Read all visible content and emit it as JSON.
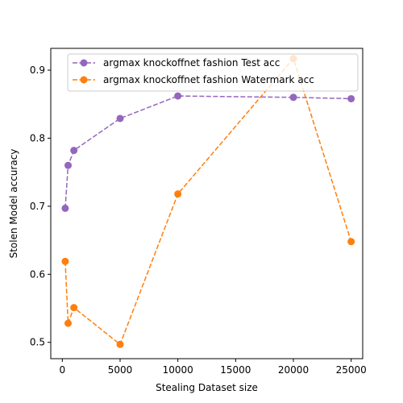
{
  "chart_data": {
    "type": "line",
    "title": "",
    "xlabel": "Stealing Dataset size",
    "ylabel": "Stolen Model accuracy",
    "xlim": [
      -1000,
      26000
    ],
    "ylim": [
      0.476,
      0.932
    ],
    "xticks": [
      0,
      5000,
      10000,
      15000,
      20000,
      25000
    ],
    "yticks": [
      0.5,
      0.6,
      0.7,
      0.8,
      0.9
    ],
    "grid": false,
    "legend_position": "top-right",
    "series": [
      {
        "name": "argmax knockoffnet fashion Test acc",
        "color": "#9467bd",
        "line_style": "dashed",
        "marker": "circle",
        "x": [
          250,
          500,
          1000,
          5000,
          10000,
          20000,
          25000
        ],
        "y": [
          0.697,
          0.76,
          0.782,
          0.829,
          0.862,
          0.86,
          0.858
        ]
      },
      {
        "name": "argmax knockoffnet fashion Watermark acc",
        "color": "#ff7f0e",
        "line_style": "dashed",
        "marker": "circle",
        "x": [
          250,
          500,
          1000,
          5000,
          10000,
          20000,
          25000
        ],
        "y": [
          0.619,
          0.528,
          0.551,
          0.497,
          0.718,
          0.917,
          0.648
        ]
      }
    ]
  }
}
